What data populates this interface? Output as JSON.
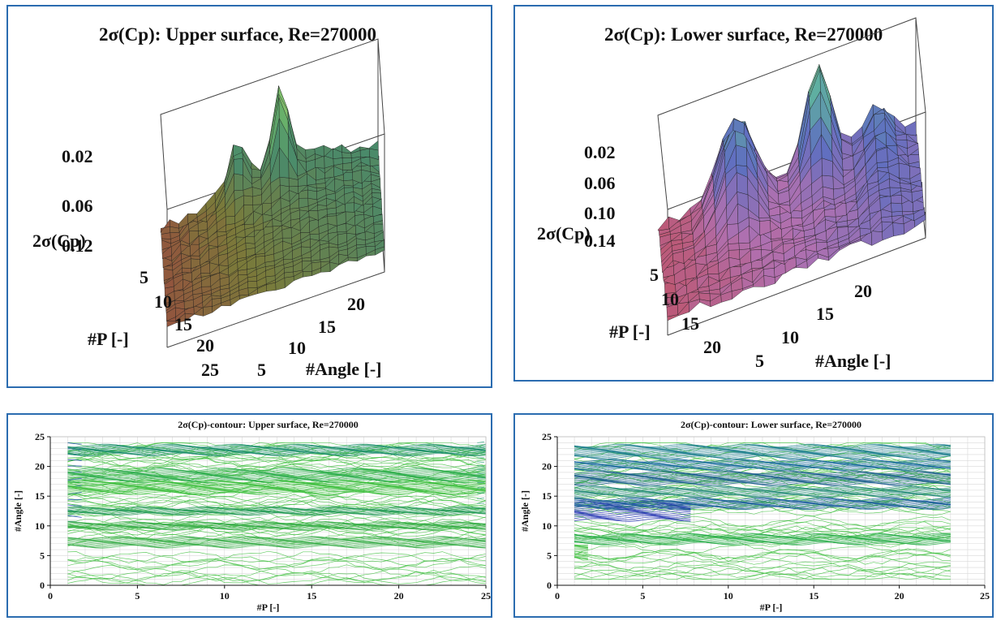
{
  "chart_data": [
    {
      "type": "surface",
      "title": "2σ(Cp): Upper surface, Re=270000",
      "zlabel": "2σ(Cp)",
      "xlabel": "#P [-]",
      "ylabel": "#Angle [-]",
      "zticks": [
        "0.02",
        "0.06",
        "0.12"
      ],
      "xticks": [
        "5",
        "10",
        "15",
        "20",
        "25"
      ],
      "yticks": [
        "5",
        "10",
        "15",
        "20"
      ],
      "x_range": [
        1,
        25
      ],
      "y_range": [
        1,
        24
      ],
      "z_range": [
        0.0,
        0.15
      ],
      "colormap": [
        "#a14040",
        "#7a7a3a",
        "#4a8a6a",
        "#6fb86a",
        "#c9e07a"
      ]
    },
    {
      "type": "surface",
      "title": "2σ(Cp): Lower surface, Re=270000",
      "zlabel": "2σ(Cp)",
      "xlabel": "#P [-]",
      "ylabel": "#Angle [-]",
      "zticks": [
        "0.02",
        "0.06",
        "0.10",
        "0.14"
      ],
      "xticks": [
        "5",
        "10",
        "15",
        "20"
      ],
      "yticks": [
        "5",
        "10",
        "15",
        "20"
      ],
      "x_range": [
        1,
        23
      ],
      "y_range": [
        1,
        24
      ],
      "z_range": [
        0.0,
        0.17
      ],
      "colormap": [
        "#c05060",
        "#b070b0",
        "#5f6fc0",
        "#5fb0a0",
        "#d8e27a"
      ]
    },
    {
      "type": "contour",
      "title": "2σ(Cp)-contour: Upper surface, Re=270000",
      "xlabel": "#P [-]",
      "ylabel": "#Angle [-]",
      "xlim": [
        0,
        25
      ],
      "ylim": [
        0,
        25
      ],
      "xticks": [
        0,
        5,
        10,
        15,
        20,
        25
      ],
      "yticks": [
        0,
        5,
        10,
        15,
        20,
        25
      ],
      "grid": true,
      "data_x_range": [
        1,
        25
      ],
      "data_y_range": [
        0,
        24
      ],
      "dense_bands": [
        {
          "x": [
            1,
            2
          ],
          "y": [
            10.5,
            24
          ],
          "color": "#1f3fbf"
        },
        {
          "x": [
            1,
            25
          ],
          "y": [
            22,
            23.5
          ],
          "color": "#1f8f6f"
        },
        {
          "x": [
            1,
            25
          ],
          "y": [
            17.5,
            19.5
          ],
          "color": "#2fae4f"
        },
        {
          "x": [
            1,
            25
          ],
          "y": [
            15.5,
            17.5
          ],
          "color": "#3fc03f"
        },
        {
          "x": [
            1,
            25
          ],
          "y": [
            12,
            13
          ],
          "color": "#2fa05f"
        },
        {
          "x": [
            1,
            25
          ],
          "y": [
            9.5,
            10.5
          ],
          "color": "#3fb04f"
        },
        {
          "x": [
            1,
            25
          ],
          "y": [
            6.5,
            8
          ],
          "color": "#3fb04f"
        },
        {
          "x": [
            24.5,
            25
          ],
          "y": [
            14,
            24
          ],
          "color": "#2f9f7f"
        }
      ]
    },
    {
      "type": "contour",
      "title": "2σ(Cp)-contour: Lower surface, Re=270000",
      "xlabel": "#P [-]",
      "ylabel": "#Angle [-]",
      "xlim": [
        0,
        25
      ],
      "ylim": [
        0,
        25
      ],
      "xticks": [
        0,
        5,
        10,
        15,
        20,
        25
      ],
      "yticks": [
        0,
        5,
        10,
        15,
        20,
        25
      ],
      "grid": true,
      "data_x_range": [
        1,
        23
      ],
      "data_y_range": [
        1,
        24
      ],
      "dense_bands": [
        {
          "x": [
            1,
            23
          ],
          "y": [
            21.5,
            23.5
          ],
          "color": "#1f7f8f"
        },
        {
          "x": [
            1,
            23
          ],
          "y": [
            19.5,
            21
          ],
          "color": "#1f6f9f"
        },
        {
          "x": [
            1,
            23
          ],
          "y": [
            17,
            19
          ],
          "color": "#1f5f8f"
        },
        {
          "x": [
            1,
            23
          ],
          "y": [
            15,
            16.5
          ],
          "color": "#2f8f7f"
        },
        {
          "x": [
            1,
            8
          ],
          "y": [
            11,
            14
          ],
          "color": "#1f2fb0"
        },
        {
          "x": [
            1,
            23
          ],
          "y": [
            13,
            14.5
          ],
          "color": "#1f5f9f"
        },
        {
          "x": [
            1,
            23
          ],
          "y": [
            7,
            8.5
          ],
          "color": "#2faf4f"
        },
        {
          "x": [
            1,
            2
          ],
          "y": [
            4.5,
            7
          ],
          "color": "#3fbf3f"
        }
      ]
    }
  ]
}
